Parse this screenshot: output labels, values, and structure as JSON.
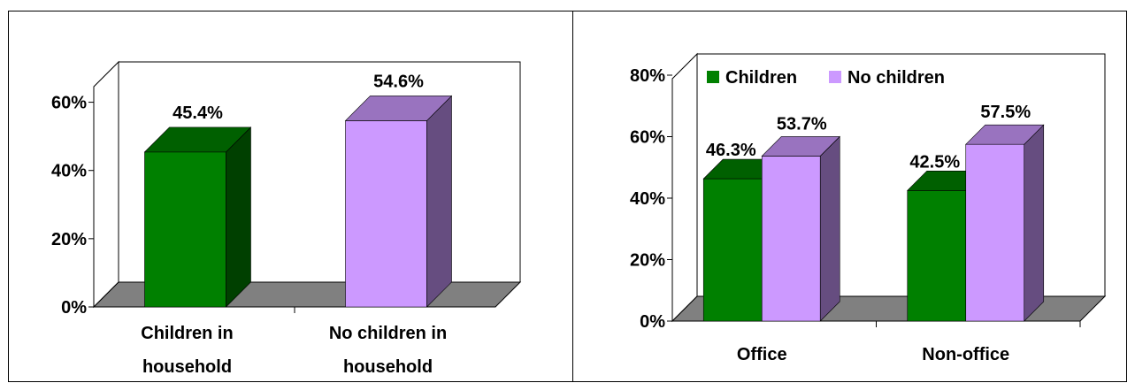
{
  "chart_data": [
    {
      "type": "bar",
      "categories": [
        "Children in household",
        "No children in household"
      ],
      "category_lines": [
        [
          "Children in",
          "household"
        ],
        [
          "No children in",
          "household"
        ]
      ],
      "values": [
        45.4,
        54.6
      ],
      "value_labels": [
        "45.4%",
        "54.6%"
      ],
      "colors": [
        "#008000",
        "#CC99FF"
      ],
      "yticks": [
        "0%",
        "20%",
        "40%",
        "60%"
      ],
      "ytick_values": [
        0,
        20,
        40,
        60
      ],
      "ylim": [
        0,
        70
      ],
      "legend": null
    },
    {
      "type": "bar",
      "categories": [
        "Office",
        "Non-office"
      ],
      "series": [
        {
          "name": "Children",
          "values": [
            46.3,
            42.5
          ],
          "value_labels": [
            "46.3%",
            "42.5%"
          ],
          "color": "#008000"
        },
        {
          "name": "No children",
          "values": [
            53.7,
            57.5
          ],
          "value_labels": [
            "53.7%",
            "57.5%"
          ],
          "color": "#CC99FF"
        }
      ],
      "yticks": [
        "0%",
        "20%",
        "40%",
        "60%",
        "80%"
      ],
      "ytick_values": [
        0,
        20,
        40,
        60,
        80
      ],
      "ylim": [
        0,
        80
      ],
      "legend": "top-left"
    }
  ]
}
